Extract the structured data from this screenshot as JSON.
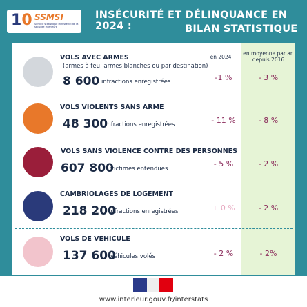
{
  "header": {
    "logo_text": "SSMSI",
    "logo_subtitle": "Service statistique ministériel de la sécurité intérieure",
    "title_line1": "INSÉCURITÉ ET DÉLINQUANCE EN 2024 :",
    "title_line2": "BILAN STATISTIQUE"
  },
  "columns": {
    "year": "en 2024",
    "average": "en moyenne par an depuis 2016"
  },
  "rows": [
    {
      "title": "VOLS AVEC ARMES",
      "note": "(armes à feu, armes blanches ou par destination)",
      "count": "8 600",
      "unit": "infractions enregistrées",
      "change_2024": "-1 %",
      "change_avg": "- 3 %"
    },
    {
      "title": "VOLS VIOLENTS SANS ARME",
      "count": "48 300",
      "unit": "infractions enregistrées",
      "change_2024": "- 11 %",
      "change_avg": "- 8 %"
    },
    {
      "title": "VOLS SANS VIOLENCE CONTRE DES PERSONNES",
      "count": "607 800",
      "unit": "victimes entendues",
      "change_2024": "- 5 %",
      "change_avg": "- 2 %"
    },
    {
      "title": "CAMBRIOLAGES DE LOGEMENT",
      "count": "218 200",
      "unit": "infractions enregistrées",
      "change_2024": "+ 0 %",
      "change_avg": "- 2 %"
    },
    {
      "title": "VOLS DE VÉHICULE",
      "count": "137 600",
      "unit": "véhicules volés",
      "change_2024": "- 2 %",
      "change_avg": "- 2%"
    }
  ],
  "footer": {
    "url": "www.interieur.gouv.fr/interstats"
  }
}
